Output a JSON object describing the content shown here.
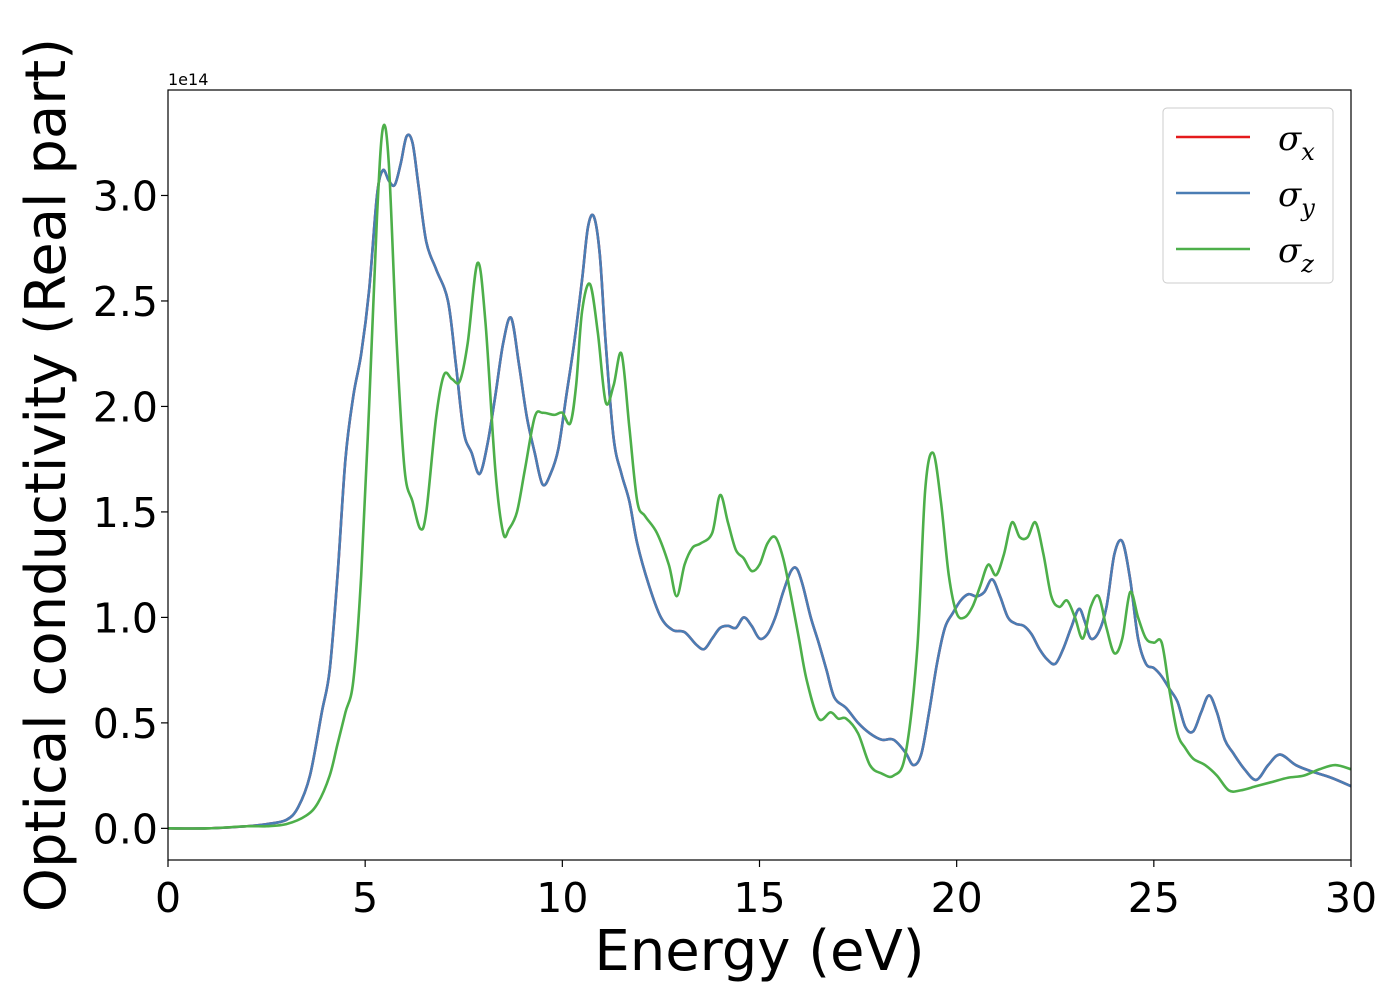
{
  "chart_data": {
    "type": "line",
    "title": "",
    "xlabel": "Energy (eV)",
    "ylabel": "Optical conductivity (Real part)",
    "y_offset_text": "1e14",
    "xlim": [
      0,
      30
    ],
    "ylim": [
      -0.15,
      3.5
    ],
    "xticks": [
      0,
      5,
      10,
      15,
      20,
      25,
      30
    ],
    "yticks": [
      0.0,
      0.5,
      1.0,
      1.5,
      2.0,
      2.5,
      3.0
    ],
    "xtick_labels": [
      "0",
      "5",
      "10",
      "15",
      "20",
      "25",
      "30"
    ],
    "ytick_labels": [
      "0.0",
      "0.5",
      "1.0",
      "1.5",
      "2.0",
      "2.5",
      "3.0"
    ],
    "grid": false,
    "legend_position": "top-right",
    "series": [
      {
        "name": "x",
        "legend_symbol": "σ",
        "legend_subscript": "x",
        "color": "#e41a1c",
        "x": [
          0,
          1,
          2,
          2.5,
          3,
          3.3,
          3.6,
          3.9,
          4.1,
          4.3,
          4.5,
          4.7,
          4.9,
          5.1,
          5.3,
          5.45,
          5.6,
          5.75,
          5.9,
          6.05,
          6.2,
          6.35,
          6.55,
          6.8,
          7.1,
          7.3,
          7.5,
          7.7,
          7.9,
          8.1,
          8.3,
          8.5,
          8.7,
          8.9,
          9.1,
          9.3,
          9.5,
          9.7,
          9.9,
          10.1,
          10.3,
          10.5,
          10.65,
          10.8,
          10.95,
          11.1,
          11.3,
          11.5,
          11.7,
          11.9,
          12.2,
          12.5,
          12.8,
          13.1,
          13.4,
          13.6,
          13.8,
          14.0,
          14.2,
          14.4,
          14.6,
          14.8,
          15.0,
          15.2,
          15.4,
          15.6,
          15.8,
          15.95,
          16.1,
          16.3,
          16.5,
          16.7,
          16.9,
          17.2,
          17.5,
          17.8,
          18.1,
          18.4,
          18.7,
          18.9,
          19.1,
          19.3,
          19.5,
          19.7,
          19.9,
          20.1,
          20.3,
          20.5,
          20.7,
          20.9,
          21.1,
          21.3,
          21.5,
          21.7,
          21.9,
          22.1,
          22.3,
          22.5,
          22.7,
          22.9,
          23.1,
          23.25,
          23.4,
          23.6,
          23.8,
          24.0,
          24.2,
          24.4,
          24.6,
          24.8,
          25.0,
          25.2,
          25.4,
          25.6,
          25.8,
          26.0,
          26.2,
          26.4,
          26.6,
          26.8,
          27.0,
          27.3,
          27.6,
          27.9,
          28.2,
          28.6,
          29.0,
          29.5,
          30.0
        ],
        "y": [
          0.0,
          0.0,
          0.01,
          0.02,
          0.04,
          0.1,
          0.25,
          0.55,
          0.75,
          1.2,
          1.75,
          2.05,
          2.25,
          2.55,
          3.0,
          3.12,
          3.07,
          3.05,
          3.15,
          3.28,
          3.25,
          3.05,
          2.78,
          2.65,
          2.5,
          2.2,
          1.88,
          1.78,
          1.68,
          1.82,
          2.05,
          2.3,
          2.42,
          2.2,
          1.95,
          1.78,
          1.63,
          1.68,
          1.8,
          2.05,
          2.3,
          2.6,
          2.85,
          2.9,
          2.72,
          2.3,
          1.85,
          1.68,
          1.55,
          1.35,
          1.15,
          1.0,
          0.94,
          0.93,
          0.87,
          0.85,
          0.9,
          0.95,
          0.96,
          0.95,
          1.0,
          0.96,
          0.9,
          0.92,
          1.0,
          1.12,
          1.22,
          1.23,
          1.15,
          1.0,
          0.88,
          0.75,
          0.62,
          0.57,
          0.5,
          0.45,
          0.42,
          0.42,
          0.36,
          0.3,
          0.35,
          0.55,
          0.78,
          0.95,
          1.02,
          1.08,
          1.11,
          1.1,
          1.12,
          1.18,
          1.1,
          1.0,
          0.97,
          0.96,
          0.92,
          0.85,
          0.8,
          0.78,
          0.85,
          0.95,
          1.04,
          0.98,
          0.9,
          0.93,
          1.05,
          1.3,
          1.36,
          1.18,
          0.9,
          0.78,
          0.76,
          0.72,
          0.66,
          0.6,
          0.48,
          0.46,
          0.55,
          0.63,
          0.55,
          0.42,
          0.36,
          0.28,
          0.23,
          0.3,
          0.35,
          0.3,
          0.27,
          0.24,
          0.2
        ]
      },
      {
        "name": "y",
        "legend_symbol": "σ",
        "legend_subscript": "y",
        "color": "#4a7db4",
        "x": [
          0,
          1,
          2,
          2.5,
          3,
          3.3,
          3.6,
          3.9,
          4.1,
          4.3,
          4.5,
          4.7,
          4.9,
          5.1,
          5.3,
          5.45,
          5.6,
          5.75,
          5.9,
          6.05,
          6.2,
          6.35,
          6.55,
          6.8,
          7.1,
          7.3,
          7.5,
          7.7,
          7.9,
          8.1,
          8.3,
          8.5,
          8.7,
          8.9,
          9.1,
          9.3,
          9.5,
          9.7,
          9.9,
          10.1,
          10.3,
          10.5,
          10.65,
          10.8,
          10.95,
          11.1,
          11.3,
          11.5,
          11.7,
          11.9,
          12.2,
          12.5,
          12.8,
          13.1,
          13.4,
          13.6,
          13.8,
          14.0,
          14.2,
          14.4,
          14.6,
          14.8,
          15.0,
          15.2,
          15.4,
          15.6,
          15.8,
          15.95,
          16.1,
          16.3,
          16.5,
          16.7,
          16.9,
          17.2,
          17.5,
          17.8,
          18.1,
          18.4,
          18.7,
          18.9,
          19.1,
          19.3,
          19.5,
          19.7,
          19.9,
          20.1,
          20.3,
          20.5,
          20.7,
          20.9,
          21.1,
          21.3,
          21.5,
          21.7,
          21.9,
          22.1,
          22.3,
          22.5,
          22.7,
          22.9,
          23.1,
          23.25,
          23.4,
          23.6,
          23.8,
          24.0,
          24.2,
          24.4,
          24.6,
          24.8,
          25.0,
          25.2,
          25.4,
          25.6,
          25.8,
          26.0,
          26.2,
          26.4,
          26.6,
          26.8,
          27.0,
          27.3,
          27.6,
          27.9,
          28.2,
          28.6,
          29.0,
          29.5,
          30.0
        ],
        "y": [
          0.0,
          0.0,
          0.01,
          0.02,
          0.04,
          0.1,
          0.25,
          0.55,
          0.75,
          1.2,
          1.75,
          2.05,
          2.25,
          2.55,
          3.0,
          3.12,
          3.07,
          3.05,
          3.15,
          3.28,
          3.25,
          3.05,
          2.78,
          2.65,
          2.5,
          2.2,
          1.88,
          1.78,
          1.68,
          1.82,
          2.05,
          2.3,
          2.42,
          2.2,
          1.95,
          1.78,
          1.63,
          1.68,
          1.8,
          2.05,
          2.3,
          2.6,
          2.85,
          2.9,
          2.72,
          2.3,
          1.85,
          1.68,
          1.55,
          1.35,
          1.15,
          1.0,
          0.94,
          0.93,
          0.87,
          0.85,
          0.9,
          0.95,
          0.96,
          0.95,
          1.0,
          0.96,
          0.9,
          0.92,
          1.0,
          1.12,
          1.22,
          1.23,
          1.15,
          1.0,
          0.88,
          0.75,
          0.62,
          0.57,
          0.5,
          0.45,
          0.42,
          0.42,
          0.36,
          0.3,
          0.35,
          0.55,
          0.78,
          0.95,
          1.02,
          1.08,
          1.11,
          1.1,
          1.12,
          1.18,
          1.1,
          1.0,
          0.97,
          0.96,
          0.92,
          0.85,
          0.8,
          0.78,
          0.85,
          0.95,
          1.04,
          0.98,
          0.9,
          0.93,
          1.05,
          1.3,
          1.36,
          1.18,
          0.9,
          0.78,
          0.76,
          0.72,
          0.66,
          0.6,
          0.48,
          0.46,
          0.55,
          0.63,
          0.55,
          0.42,
          0.36,
          0.28,
          0.23,
          0.3,
          0.35,
          0.3,
          0.27,
          0.24,
          0.2
        ]
      },
      {
        "name": "z",
        "legend_symbol": "σ",
        "legend_subscript": "z",
        "color": "#4daf4a",
        "x": [
          0,
          1,
          2,
          2.5,
          3,
          3.5,
          3.8,
          4.1,
          4.3,
          4.5,
          4.7,
          4.9,
          5.1,
          5.3,
          5.45,
          5.6,
          5.8,
          6.0,
          6.2,
          6.4,
          6.55,
          6.8,
          7.0,
          7.2,
          7.4,
          7.6,
          7.85,
          8.05,
          8.3,
          8.5,
          8.65,
          8.85,
          9.05,
          9.3,
          9.5,
          9.8,
          10.0,
          10.2,
          10.35,
          10.5,
          10.7,
          10.9,
          11.1,
          11.3,
          11.5,
          11.7,
          11.9,
          12.1,
          12.4,
          12.7,
          12.9,
          13.1,
          13.3,
          13.5,
          13.8,
          14.0,
          14.2,
          14.4,
          14.6,
          14.8,
          15.0,
          15.2,
          15.4,
          15.6,
          15.8,
          16.0,
          16.2,
          16.5,
          16.8,
          17.0,
          17.2,
          17.5,
          17.8,
          18.1,
          18.4,
          18.7,
          19.0,
          19.2,
          19.4,
          19.6,
          19.8,
          20.0,
          20.2,
          20.4,
          20.6,
          20.8,
          21.0,
          21.2,
          21.4,
          21.6,
          21.8,
          22.0,
          22.2,
          22.4,
          22.6,
          22.8,
          23.0,
          23.2,
          23.4,
          23.6,
          23.8,
          24.0,
          24.2,
          24.4,
          24.6,
          24.8,
          25.0,
          25.2,
          25.4,
          25.6,
          25.8,
          26.0,
          26.3,
          26.6,
          26.9,
          27.2,
          27.6,
          28.0,
          28.4,
          28.8,
          29.2,
          29.6,
          30.0
        ],
        "y": [
          0.0,
          0.0,
          0.01,
          0.01,
          0.02,
          0.06,
          0.12,
          0.25,
          0.4,
          0.55,
          0.7,
          1.2,
          2.0,
          2.9,
          3.32,
          3.15,
          2.3,
          1.7,
          1.55,
          1.42,
          1.5,
          1.95,
          2.15,
          2.13,
          2.12,
          2.3,
          2.68,
          2.4,
          1.7,
          1.4,
          1.42,
          1.5,
          1.7,
          1.95,
          1.97,
          1.96,
          1.97,
          1.92,
          2.1,
          2.45,
          2.58,
          2.35,
          2.02,
          2.1,
          2.25,
          1.9,
          1.55,
          1.48,
          1.4,
          1.25,
          1.1,
          1.25,
          1.33,
          1.35,
          1.4,
          1.58,
          1.45,
          1.32,
          1.28,
          1.22,
          1.25,
          1.35,
          1.38,
          1.28,
          1.1,
          0.9,
          0.7,
          0.52,
          0.55,
          0.52,
          0.52,
          0.45,
          0.3,
          0.26,
          0.25,
          0.35,
          0.85,
          1.6,
          1.78,
          1.55,
          1.2,
          1.02,
          1.0,
          1.05,
          1.15,
          1.25,
          1.2,
          1.3,
          1.45,
          1.38,
          1.38,
          1.45,
          1.3,
          1.1,
          1.05,
          1.08,
          1.0,
          0.9,
          1.05,
          1.1,
          0.95,
          0.83,
          0.9,
          1.12,
          1.0,
          0.9,
          0.88,
          0.88,
          0.65,
          0.45,
          0.38,
          0.33,
          0.3,
          0.25,
          0.18,
          0.18,
          0.2,
          0.22,
          0.24,
          0.25,
          0.28,
          0.3,
          0.28
        ]
      }
    ]
  }
}
